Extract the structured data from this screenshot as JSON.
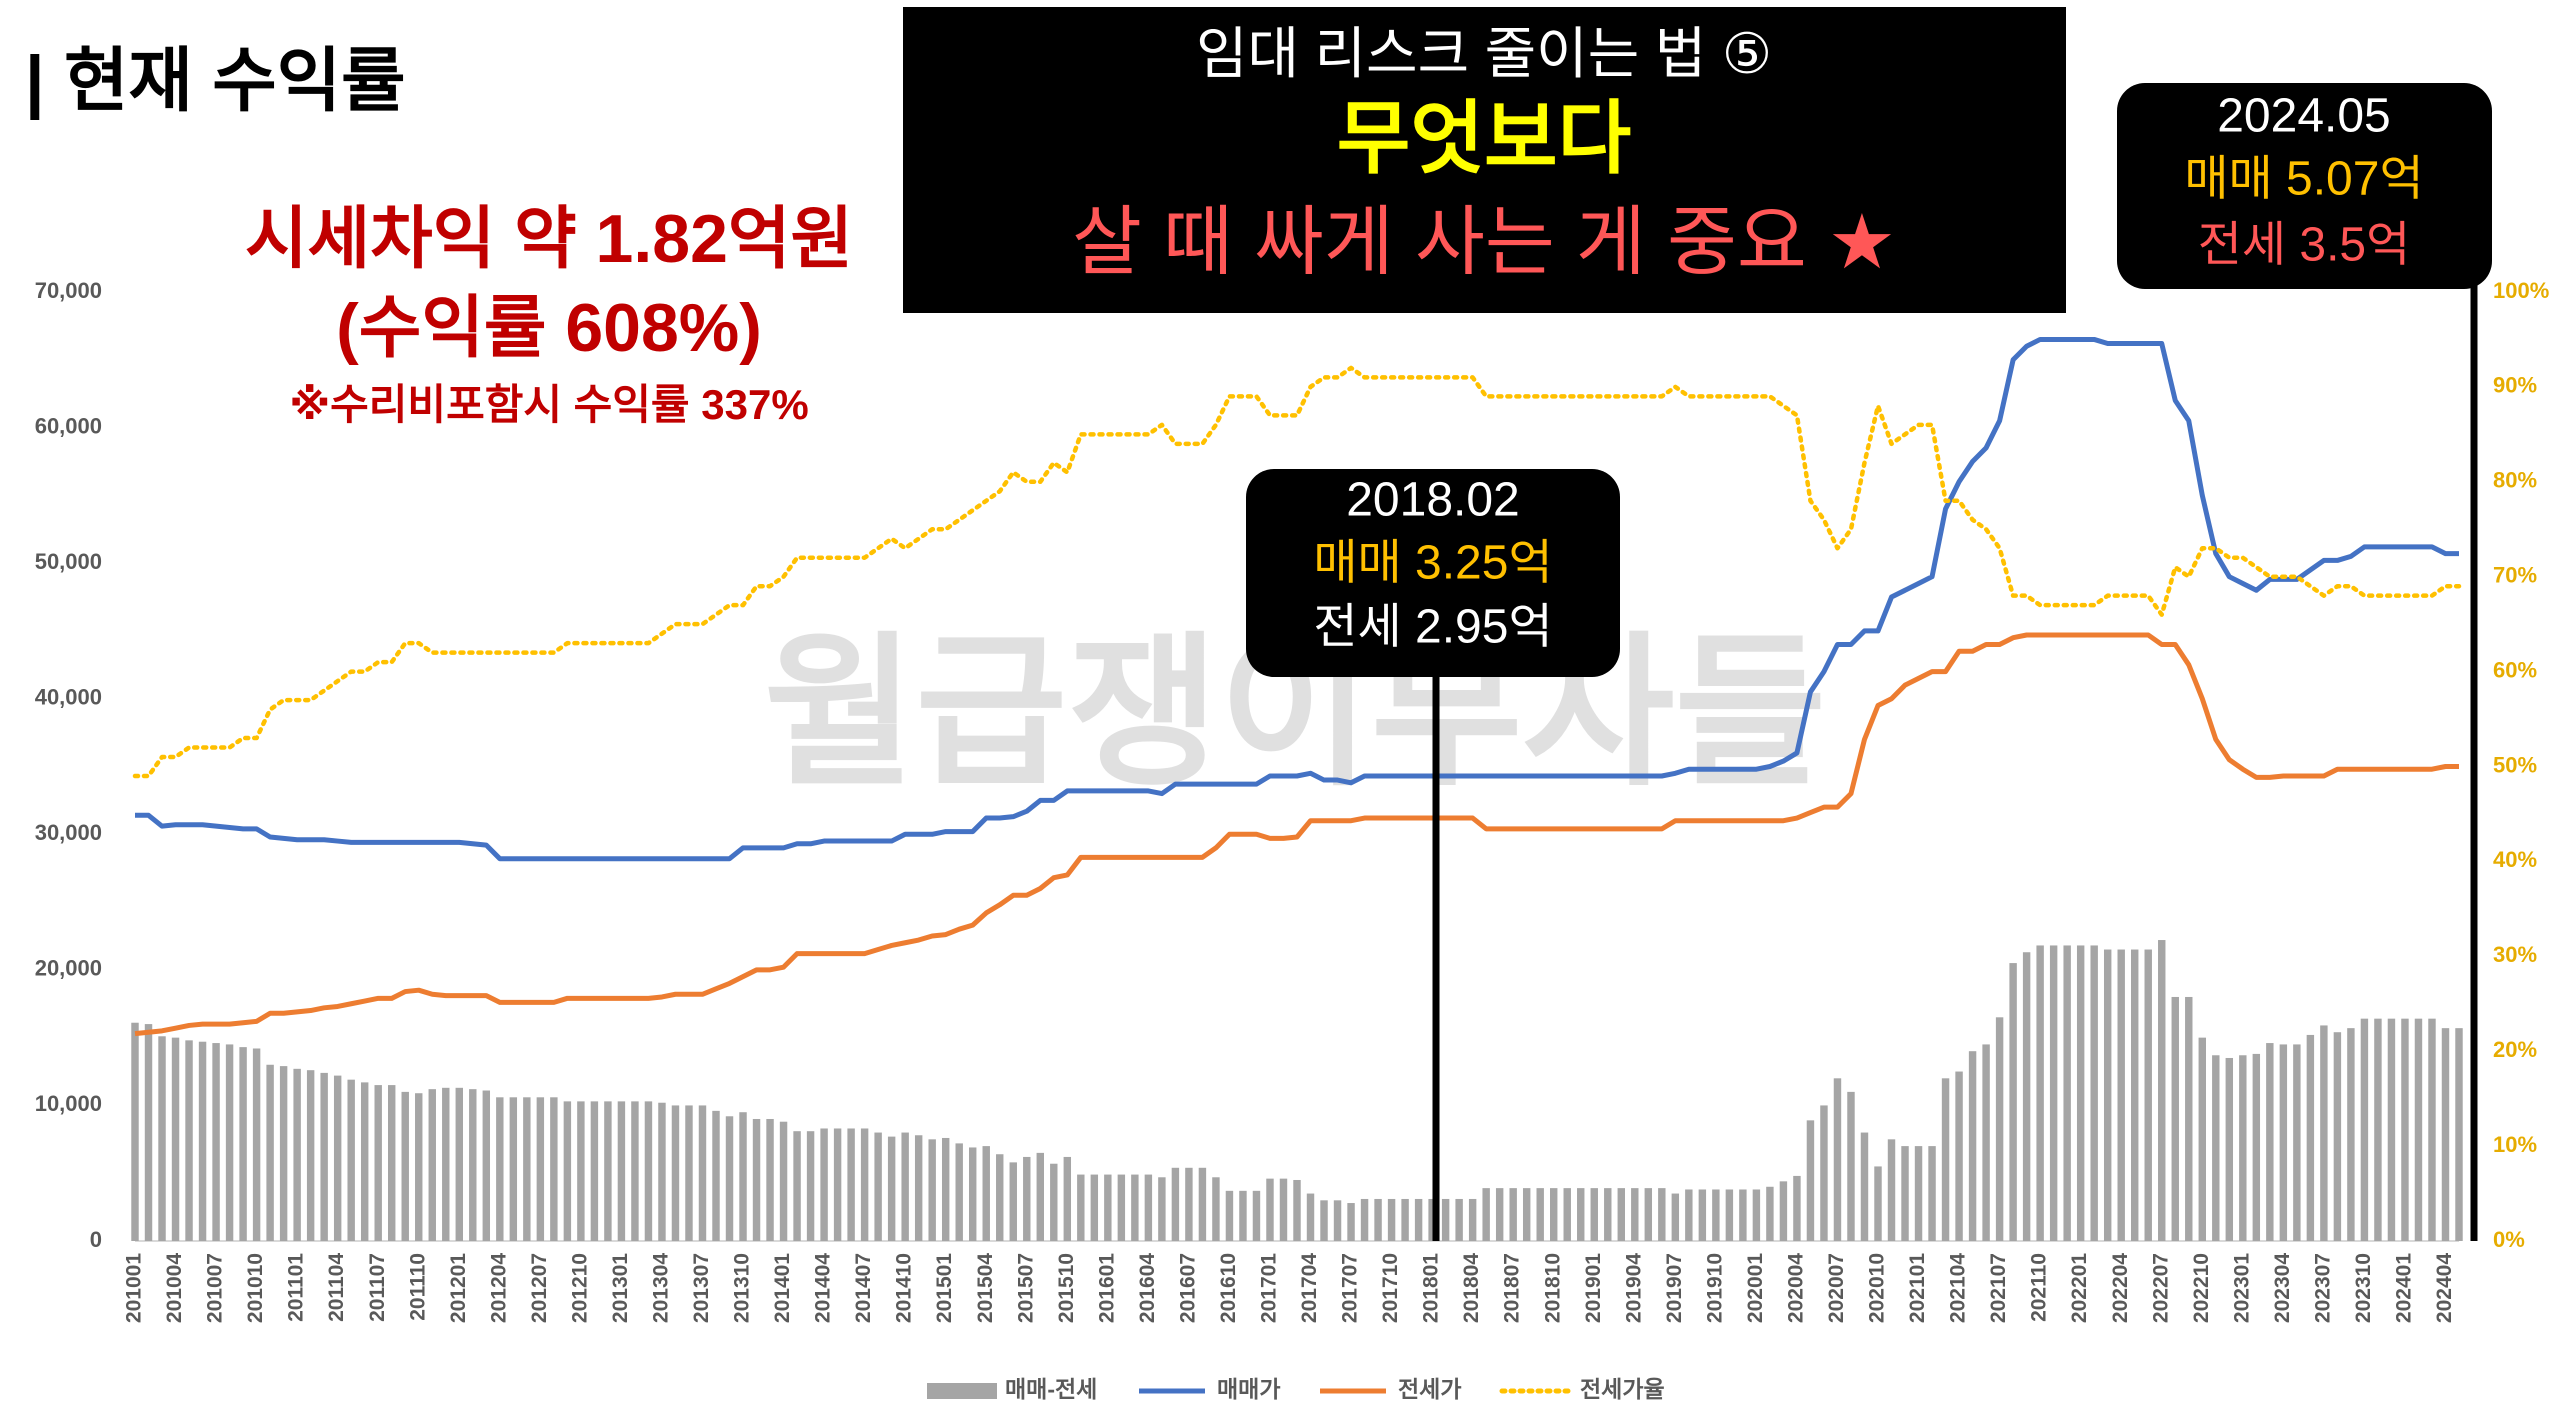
{
  "chart_data": {
    "type": "combo",
    "title": "| 현재 수익률",
    "banner": [
      "임대 리스크 줄이는 법 ⑤",
      "무엇보다",
      "살 때 싸게 사는 게 중요 ★"
    ],
    "annotations": [
      "시세차익 약 1.82억원",
      "(수익률 608%)",
      "※수리비포함시 수익률 337%"
    ],
    "watermark": "월급쟁이부자들",
    "callouts": [
      {
        "date": "2018.02",
        "lines": [
          "매매 3.25억",
          "전세 2.95억"
        ]
      },
      {
        "date": "2024.05",
        "lines": [
          "매매 5.07억",
          "전세 3.5억"
        ]
      }
    ],
    "categories": [
      "201001",
      null,
      null,
      "201004",
      null,
      null,
      "201007",
      null,
      null,
      "201010",
      null,
      null,
      "201101",
      null,
      null,
      "201104",
      null,
      null,
      "201107",
      null,
      null,
      "201110",
      null,
      null,
      "201201",
      null,
      null,
      "201204",
      null,
      null,
      "201207",
      null,
      null,
      "201210",
      null,
      null,
      "201301",
      null,
      null,
      "201304",
      null,
      null,
      "201307",
      null,
      null,
      "201310",
      null,
      null,
      "201401",
      null,
      null,
      "201404",
      null,
      null,
      "201407",
      null,
      null,
      "201410",
      null,
      null,
      "201501",
      null,
      null,
      "201504",
      null,
      null,
      "201507",
      null,
      null,
      "201510",
      null,
      null,
      "201601",
      null,
      null,
      "201604",
      null,
      null,
      "201607",
      null,
      null,
      "201610",
      null,
      null,
      "201701",
      null,
      null,
      "201704",
      null,
      null,
      "201707",
      null,
      null,
      "201710",
      null,
      null,
      "201801",
      null,
      null,
      "201804",
      null,
      null,
      "201807",
      null,
      null,
      "201810",
      null,
      null,
      "201901",
      null,
      null,
      "201904",
      null,
      null,
      "201907",
      null,
      null,
      "201910",
      null,
      null,
      "202001",
      null,
      null,
      "202004",
      null,
      null,
      "202007",
      null,
      null,
      "202010",
      null,
      null,
      "202101",
      null,
      null,
      "202104",
      null,
      null,
      "202107",
      null,
      null,
      "202110",
      null,
      null,
      "202201",
      null,
      null,
      "202204",
      null,
      null,
      "202207",
      null,
      null,
      "202210",
      null,
      null,
      "202301",
      null,
      null,
      "202304",
      null,
      null,
      "202307",
      null,
      null,
      "202310",
      null,
      null,
      "202401",
      null,
      null,
      "202404",
      null
    ],
    "series": [
      {
        "name": "매매-전세",
        "type": "bar",
        "color": "#a5a5a5",
        "values": [
          16100,
          16000,
          15100,
          15000,
          14800,
          14700,
          14600,
          14500,
          14300,
          14200,
          13000,
          12900,
          12700,
          12600,
          12400,
          12200,
          11900,
          11700,
          11500,
          11500,
          11000,
          10900,
          11200,
          11300,
          11300,
          11200,
          11100,
          10600,
          10600,
          10600,
          10600,
          10600,
          10300,
          10300,
          10300,
          10300,
          10300,
          10300,
          10300,
          10200,
          10000,
          10000,
          10000,
          9600,
          9200,
          9500,
          9000,
          9000,
          8800,
          8100,
          8100,
          8300,
          8300,
          8300,
          8300,
          8000,
          7700,
          8000,
          7800,
          7500,
          7600,
          7200,
          6900,
          7000,
          6400,
          5800,
          6200,
          6500,
          5700,
          6200,
          4900,
          4900,
          4900,
          4900,
          4900,
          4900,
          4700,
          5400,
          5400,
          5400,
          4700,
          3700,
          3700,
          3700,
          4600,
          4600,
          4500,
          3500,
          3000,
          3000,
          2800,
          3100,
          3100,
          3100,
          3100,
          3100,
          3100,
          3100,
          3100,
          3100,
          3900,
          3900,
          3900,
          3900,
          3900,
          3900,
          3900,
          3900,
          3900,
          3900,
          3900,
          3900,
          3900,
          3900,
          3500,
          3800,
          3800,
          3800,
          3800,
          3800,
          3800,
          4000,
          4400,
          4800,
          8900,
          10000,
          12000,
          11000,
          8000,
          5500,
          7500,
          7000,
          7000,
          7000,
          12000,
          12500,
          14000,
          14500,
          16500,
          20500,
          21300,
          21800,
          21800,
          21800,
          21800,
          21800,
          21500,
          21500,
          21500,
          21500,
          22200,
          18000,
          18000,
          15000,
          13700,
          13500,
          13700,
          13800,
          14600,
          14500,
          14500,
          15200,
          15900,
          15400,
          15700,
          16400,
          16400,
          16400,
          16400,
          16400,
          16400,
          15700,
          15700
        ]
      },
      {
        "name": "매매가",
        "type": "line",
        "color": "#4472c4",
        "values": [
          31400,
          31400,
          30600,
          30700,
          30700,
          30700,
          30600,
          30500,
          30400,
          30400,
          29800,
          29700,
          29600,
          29600,
          29600,
          29500,
          29400,
          29400,
          29400,
          29400,
          29400,
          29400,
          29400,
          29400,
          29400,
          29300,
          29200,
          28200,
          28200,
          28200,
          28200,
          28200,
          28200,
          28200,
          28200,
          28200,
          28200,
          28200,
          28200,
          28200,
          28200,
          28200,
          28200,
          28200,
          28200,
          29000,
          29000,
          29000,
          29000,
          29300,
          29300,
          29500,
          29500,
          29500,
          29500,
          29500,
          29500,
          30000,
          30000,
          30000,
          30200,
          30200,
          30200,
          31200,
          31200,
          31300,
          31700,
          32500,
          32500,
          33200,
          33200,
          33200,
          33200,
          33200,
          33200,
          33200,
          33000,
          33700,
          33700,
          33700,
          33700,
          33700,
          33700,
          33700,
          34300,
          34300,
          34300,
          34500,
          34000,
          34000,
          33800,
          34300,
          34300,
          34300,
          34300,
          34300,
          34300,
          34300,
          34300,
          34300,
          34300,
          34300,
          34300,
          34300,
          34300,
          34300,
          34300,
          34300,
          34300,
          34300,
          34300,
          34300,
          34300,
          34300,
          34500,
          34800,
          34800,
          34800,
          34800,
          34800,
          34800,
          35000,
          35400,
          36000,
          40500,
          42000,
          44000,
          44000,
          45000,
          45000,
          47500,
          48000,
          48500,
          49000,
          54000,
          56000,
          57500,
          58500,
          60500,
          65000,
          66000,
          66500,
          66500,
          66500,
          66500,
          66500,
          66200,
          66200,
          66200,
          66200,
          66200,
          62000,
          60500,
          55000,
          50700,
          49000,
          48500,
          48000,
          48800,
          48800,
          48800,
          49500,
          50200,
          50200,
          50500,
          51200,
          51200,
          51200,
          51200,
          51200,
          51200,
          50700,
          50700
        ]
      },
      {
        "name": "전세가",
        "type": "line",
        "color": "#ed7d31",
        "values": [
          15300,
          15400,
          15500,
          15700,
          15900,
          16000,
          16000,
          16000,
          16100,
          16200,
          16800,
          16800,
          16900,
          17000,
          17200,
          17300,
          17500,
          17700,
          17900,
          17900,
          18400,
          18500,
          18200,
          18100,
          18100,
          18100,
          18100,
          17600,
          17600,
          17600,
          17600,
          17600,
          17900,
          17900,
          17900,
          17900,
          17900,
          17900,
          17900,
          18000,
          18200,
          18200,
          18200,
          18600,
          19000,
          19500,
          20000,
          20000,
          20200,
          21200,
          21200,
          21200,
          21200,
          21200,
          21200,
          21500,
          21800,
          22000,
          22200,
          22500,
          22600,
          23000,
          23300,
          24200,
          24800,
          25500,
          25500,
          26000,
          26800,
          27000,
          28300,
          28300,
          28300,
          28300,
          28300,
          28300,
          28300,
          28300,
          28300,
          28300,
          29000,
          30000,
          30000,
          30000,
          29700,
          29700,
          29800,
          31000,
          31000,
          31000,
          31000,
          31200,
          31200,
          31200,
          31200,
          31200,
          31200,
          31200,
          31200,
          31200,
          30400,
          30400,
          30400,
          30400,
          30400,
          30400,
          30400,
          30400,
          30400,
          30400,
          30400,
          30400,
          30400,
          30400,
          31000,
          31000,
          31000,
          31000,
          31000,
          31000,
          31000,
          31000,
          31000,
          31200,
          31600,
          32000,
          32000,
          33000,
          37000,
          39500,
          40000,
          41000,
          41500,
          42000,
          42000,
          43500,
          43500,
          44000,
          44000,
          44500,
          44700,
          44700,
          44700,
          44700,
          44700,
          44700,
          44700,
          44700,
          44700,
          44700,
          44000,
          44000,
          42500,
          40000,
          37000,
          35500,
          34800,
          34200,
          34200,
          34300,
          34300,
          34300,
          34300,
          34800,
          34800,
          34800,
          34800,
          34800,
          34800,
          34800,
          34800,
          35000,
          35000
        ]
      },
      {
        "name": "전세가율",
        "type": "line",
        "dashed": true,
        "axis": "y2",
        "color": "#ffc000",
        "values": [
          49,
          49,
          51,
          51,
          52,
          52,
          52,
          52,
          53,
          53,
          56,
          57,
          57,
          57,
          58,
          59,
          60,
          60,
          61,
          61,
          63,
          63,
          62,
          62,
          62,
          62,
          62,
          62,
          62,
          62,
          62,
          62,
          63,
          63,
          63,
          63,
          63,
          63,
          63,
          64,
          65,
          65,
          65,
          66,
          67,
          67,
          69,
          69,
          70,
          72,
          72,
          72,
          72,
          72,
          72,
          73,
          74,
          73,
          74,
          75,
          75,
          76,
          77,
          78,
          79,
          81,
          80,
          80,
          82,
          81,
          85,
          85,
          85,
          85,
          85,
          85,
          86,
          84,
          84,
          84,
          86,
          89,
          89,
          89,
          87,
          87,
          87,
          90,
          91,
          91,
          92,
          91,
          91,
          91,
          91,
          91,
          91,
          91,
          91,
          91,
          89,
          89,
          89,
          89,
          89,
          89,
          89,
          89,
          89,
          89,
          89,
          89,
          89,
          89,
          90,
          89,
          89,
          89,
          89,
          89,
          89,
          89,
          88,
          87,
          78,
          76,
          73,
          75,
          82,
          88,
          84,
          85,
          86,
          86,
          78,
          78,
          76,
          75,
          73,
          68,
          68,
          67,
          67,
          67,
          67,
          67,
          68,
          68,
          68,
          68,
          66,
          71,
          70,
          73,
          73,
          72,
          72,
          71,
          70,
          70,
          70,
          69,
          68,
          69,
          69,
          68,
          68,
          68,
          68,
          68,
          68,
          69,
          69
        ]
      }
    ],
    "ylim": [
      0,
      70000
    ],
    "yticks": [
      0,
      {
        "value": 10000,
        "label": "10,000"
      },
      {
        "value": 20000,
        "label": "20,000"
      },
      {
        "value": 30000,
        "label": "30,000"
      },
      {
        "value": 40000,
        "label": "40,000"
      },
      {
        "value": 50000,
        "label": "50,000"
      },
      {
        "value": 60000,
        "label": "60,000"
      },
      {
        "value": 70000,
        "label": "70,000"
      }
    ],
    "y2lim": [
      0,
      100
    ],
    "y2ticks": [
      {
        "value": 0,
        "label": "0%"
      },
      {
        "value": 10,
        "label": "10%"
      },
      {
        "value": 20,
        "label": "20%"
      },
      {
        "value": 30,
        "label": "30%"
      },
      {
        "value": 40,
        "label": "40%"
      },
      {
        "value": 50,
        "label": "50%"
      },
      {
        "value": 60,
        "label": "60%"
      },
      {
        "value": 70,
        "label": "70%"
      },
      {
        "value": 80,
        "label": "80%"
      },
      {
        "value": 90,
        "label": "90%"
      },
      {
        "value": 100,
        "label": "100%"
      }
    ],
    "grid": false,
    "legend": "bottom"
  }
}
